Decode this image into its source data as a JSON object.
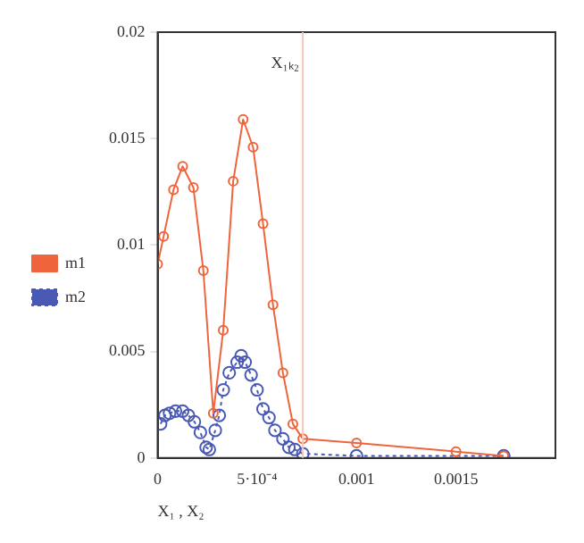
{
  "chart_data": {
    "type": "line",
    "xlabel": "X₁ , X₂",
    "xlim": [
      0,
      0.002
    ],
    "xticks": [
      0,
      {
        "value": 0.0005,
        "label": "5·10⁻⁴"
      },
      0.001,
      0.0015
    ],
    "ylim": [
      0,
      0.02
    ],
    "yticks": [
      0,
      0.005,
      0.01,
      0.015,
      0.02
    ],
    "grid": false,
    "legend": "left",
    "ref_lines": [
      {
        "axis": "x",
        "value": 0.00073,
        "label": "X₁ₖ₂",
        "color": "#f8c8b8"
      }
    ],
    "series": [
      {
        "name": "m1",
        "color": "#f0643c",
        "marker": "circle",
        "line_style": "solid",
        "x": [
          0,
          3e-05,
          8e-05,
          0.000126,
          0.00018,
          0.00023,
          0.00028,
          0.00033,
          0.00038,
          0.00043,
          0.00048,
          0.00053,
          0.00058,
          0.00063,
          0.00068,
          0.00073,
          0.001,
          0.0015,
          0.00174
        ],
        "values": [
          0.0091,
          0.0104,
          0.0126,
          0.0137,
          0.0127,
          0.0088,
          0.0021,
          0.006,
          0.013,
          0.0159,
          0.0146,
          0.011,
          0.0072,
          0.004,
          0.0016,
          0.0009,
          0.0007,
          0.0003,
          0.0001
        ]
      },
      {
        "name": "m2",
        "color": "#4a5ab4",
        "marker": "circle",
        "line_style": "dotted",
        "x": [
          1.5e-05,
          3.7e-05,
          6e-05,
          9e-05,
          0.000126,
          0.000155,
          0.000185,
          0.000215,
          0.000244,
          0.00026,
          0.00029,
          0.00031,
          0.00033,
          0.00036,
          0.0004,
          0.00042,
          0.00044,
          0.00047,
          0.0005,
          0.00053,
          0.00056,
          0.00059,
          0.00063,
          0.00066,
          0.00069,
          0.00073,
          0.001,
          0.00174
        ],
        "values": [
          0.0016,
          0.002,
          0.0021,
          0.0022,
          0.0022,
          0.002,
          0.0017,
          0.0012,
          0.0005,
          0.0004,
          0.0013,
          0.002,
          0.0032,
          0.004,
          0.0045,
          0.0048,
          0.0045,
          0.0039,
          0.0032,
          0.0023,
          0.0019,
          0.0013,
          0.0009,
          0.0005,
          0.0004,
          0.0002,
          0.0001,
          0.0001
        ]
      }
    ]
  }
}
